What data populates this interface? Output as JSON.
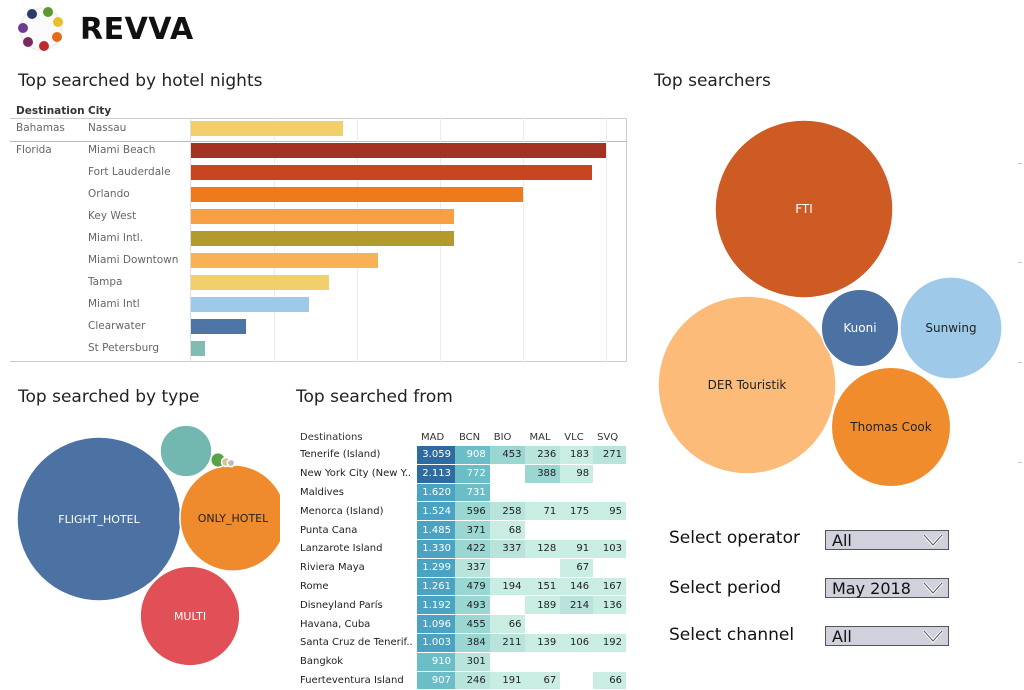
{
  "app": {
    "name": "REVVA",
    "logo_icon": "fruit-circle-logo-icon"
  },
  "hotel_nights": {
    "title": "Top searched by hotel nights",
    "col_destination": "Destination",
    "col_city": "City",
    "rows": [
      {
        "destination": "Bahamas",
        "city": "Nassau",
        "value": 2200,
        "color": "#f2cf6b"
      },
      {
        "destination": "Florida",
        "city": "Miami Beach",
        "value": 6000,
        "color": "#a33320"
      },
      {
        "destination": "",
        "city": "Fort Lauderdale",
        "value": 5800,
        "color": "#c9451f"
      },
      {
        "destination": "",
        "city": "Orlando",
        "value": 4800,
        "color": "#ef7a1c"
      },
      {
        "destination": "",
        "city": "Key West",
        "value": 3800,
        "color": "#f79f43"
      },
      {
        "destination": "",
        "city": "Miami Intl.",
        "value": 3800,
        "color": "#b39a2c"
      },
      {
        "destination": "",
        "city": "Miami Downtown",
        "value": 2700,
        "color": "#f8b255"
      },
      {
        "destination": "",
        "city": "Tampa",
        "value": 2000,
        "color": "#f2cf6b"
      },
      {
        "destination": "",
        "city": "Miami Intl",
        "value": 1700,
        "color": "#9ec9e8"
      },
      {
        "destination": "",
        "city": "Clearwater",
        "value": 800,
        "color": "#4c74a5"
      },
      {
        "destination": "",
        "city": "St Petersburg",
        "value": 200,
        "color": "#7fbcb4"
      }
    ]
  },
  "by_type": {
    "title": "Top searched by type",
    "bubbles": [
      {
        "label": "FLIGHT_HOTEL",
        "value": 100,
        "color": "#4b72a3"
      },
      {
        "label": "ONLY_HOTEL",
        "value": 42,
        "color": "#ef8b2c"
      },
      {
        "label": "MULTI",
        "value": 37,
        "color": "#e05056"
      },
      {
        "label": "",
        "value": 10,
        "color": "#72b8b0"
      },
      {
        "label": "",
        "value": 0.8,
        "color": "#59a347"
      },
      {
        "label": "",
        "value": 0.3,
        "color": "#d8c29a"
      },
      {
        "label": "",
        "value": 0.2,
        "color": "#bbbbbb"
      }
    ]
  },
  "searched_from": {
    "title": "Top searched from",
    "col_destinations": "Destinations",
    "columns": [
      "MAD",
      "BCN",
      "BIO",
      "MAL",
      "VLC",
      "SVQ"
    ],
    "rows": [
      {
        "dest": "Tenerife (Island)",
        "vals": [
          "3.059",
          "908",
          "453",
          "236",
          "183",
          "271"
        ]
      },
      {
        "dest": "New York City (New Y..",
        "vals": [
          "2.113",
          "772",
          "",
          "388",
          "98",
          ""
        ]
      },
      {
        "dest": "Maldives",
        "vals": [
          "1.620",
          "731",
          "",
          "",
          "",
          ""
        ]
      },
      {
        "dest": "Menorca (Island)",
        "vals": [
          "1.524",
          "596",
          "258",
          "71",
          "175",
          "95"
        ]
      },
      {
        "dest": "Punta Cana",
        "vals": [
          "1.485",
          "371",
          "68",
          "",
          "",
          ""
        ]
      },
      {
        "dest": "Lanzarote Island",
        "vals": [
          "1.330",
          "422",
          "337",
          "128",
          "91",
          "103"
        ]
      },
      {
        "dest": "Riviera Maya",
        "vals": [
          "1.299",
          "337",
          "",
          "",
          "67",
          ""
        ]
      },
      {
        "dest": "Rome",
        "vals": [
          "1.261",
          "479",
          "194",
          "151",
          "146",
          "167"
        ]
      },
      {
        "dest": "Disneyland París",
        "vals": [
          "1.192",
          "493",
          "",
          "189",
          "214",
          "136"
        ]
      },
      {
        "dest": "Havana, Cuba",
        "vals": [
          "1.096",
          "455",
          "66",
          "",
          "",
          ""
        ]
      },
      {
        "dest": "Santa Cruz de Tenerif..",
        "vals": [
          "1.003",
          "384",
          "211",
          "139",
          "106",
          "192"
        ]
      },
      {
        "dest": "Bangkok",
        "vals": [
          "910",
          "301",
          "",
          "",
          "",
          ""
        ]
      },
      {
        "dest": "Fuerteventura Island",
        "vals": [
          "907",
          "246",
          "191",
          "67",
          "",
          "66"
        ]
      }
    ]
  },
  "searchers": {
    "title": "Top searchers",
    "bubbles": [
      {
        "label": "FTI",
        "value": 100,
        "color": "#cf5b24"
      },
      {
        "label": "DER Touristik",
        "value": 100,
        "color": "#fdbb7a"
      },
      {
        "label": "Thomas Cook",
        "value": 45,
        "color": "#f08c2c"
      },
      {
        "label": "Sunwing",
        "value": 33,
        "color": "#9fc9e8"
      },
      {
        "label": "Kuoni",
        "value": 19,
        "color": "#4c72a3"
      }
    ]
  },
  "filters": {
    "operator": {
      "label": "Select operator",
      "value": "All"
    },
    "period": {
      "label": "Select period",
      "value": "May 2018"
    },
    "channel": {
      "label": "Select channel",
      "value": "All"
    }
  }
}
